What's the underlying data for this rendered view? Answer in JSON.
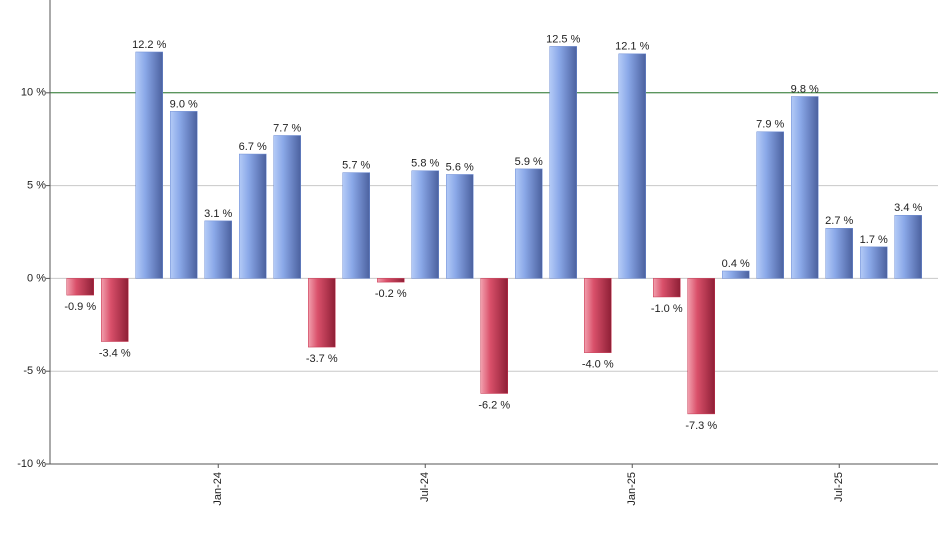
{
  "chart_data": {
    "type": "bar",
    "categories": [
      null,
      null,
      null,
      null,
      "Jan-24",
      null,
      null,
      null,
      null,
      null,
      "Jul-24",
      null,
      null,
      null,
      null,
      null,
      "Jan-25",
      null,
      null,
      null,
      null,
      null,
      "Jul-25",
      null,
      null
    ],
    "values": [
      -0.9,
      -3.4,
      12.2,
      9.0,
      3.1,
      6.7,
      7.7,
      -3.7,
      5.7,
      -0.2,
      5.8,
      5.6,
      -6.2,
      5.9,
      12.5,
      -4.0,
      12.1,
      -1.0,
      -7.3,
      0.4,
      7.9,
      9.8,
      2.7,
      1.7,
      3.4
    ],
    "value_labels": [
      "-0.9 %",
      "-3.4 %",
      "12.2 %",
      "9.0 %",
      "3.1 %",
      "6.7 %",
      "7.7 %",
      "-3.7 %",
      "5.7 %",
      "-0.2 %",
      "5.8 %",
      "5.6 %",
      "-6.2 %",
      "5.9 %",
      "12.5 %",
      "-4.0 %",
      "12.1 %",
      "-1.0 %",
      "-7.3 %",
      "0.4 %",
      "7.9 %",
      "9.8 %",
      "2.7 %",
      "1.7 %",
      "3.4 %"
    ],
    "positive_color": "#6d8cd4",
    "negative_color": "#c5304b",
    "ylim": [
      -10,
      15
    ],
    "yticks": [
      {
        "value": -10,
        "label": "-10 %"
      },
      {
        "value": -5,
        "label": "-5 %"
      },
      {
        "value": 0,
        "label": "0 %"
      },
      {
        "value": 5,
        "label": "5 %"
      },
      {
        "value": 10,
        "label": "10 %"
      }
    ],
    "grid": true,
    "reference_line": {
      "value": 10,
      "color": "#2e7d32"
    }
  }
}
